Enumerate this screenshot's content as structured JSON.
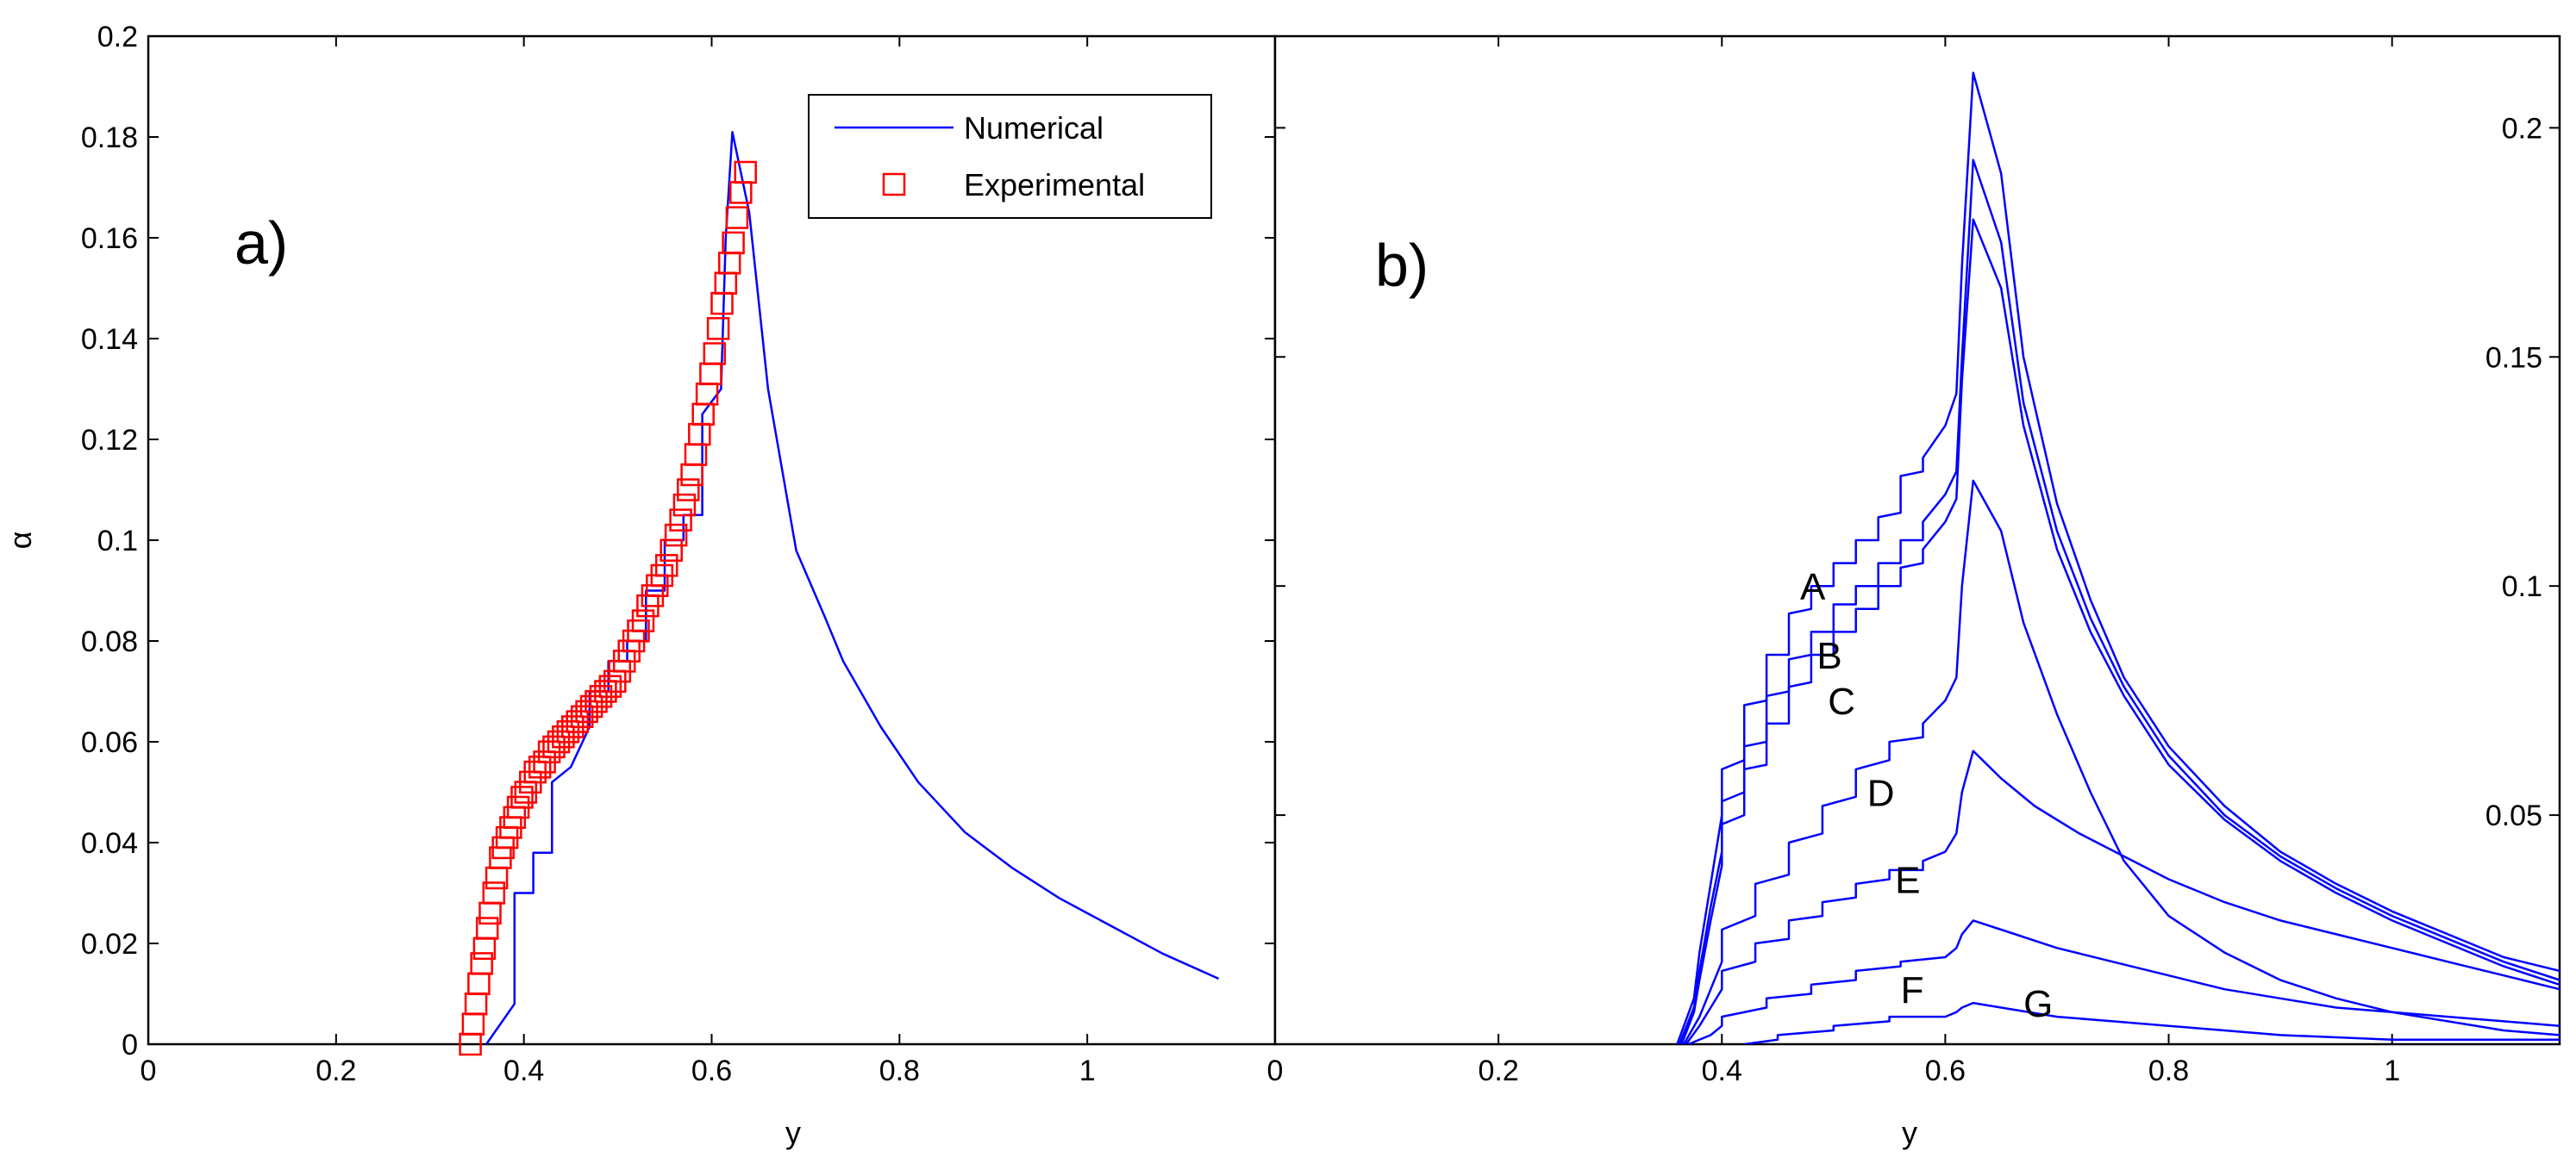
{
  "chart_data": [
    {
      "panel": "a)",
      "type": "line",
      "xlabel": "y",
      "ylabel": "α",
      "xlim": [
        0,
        1.2
      ],
      "ylim": [
        0,
        0.2
      ],
      "xticks": [
        "0",
        "0.2",
        "0.4",
        "0.6",
        "0.8",
        "1"
      ],
      "xtick_values": [
        0,
        0.2,
        0.4,
        0.6,
        0.8,
        1.0
      ],
      "yticks": [
        "0",
        "0.02",
        "0.04",
        "0.06",
        "0.08",
        "0.1",
        "0.12",
        "0.14",
        "0.16",
        "0.18",
        "0.2"
      ],
      "ytick_values": [
        0,
        0.02,
        0.04,
        0.06,
        0.08,
        0.1,
        0.12,
        0.14,
        0.16,
        0.18,
        0.2
      ],
      "legend_position": "top-right",
      "series": [
        {
          "name": "Numerical",
          "style": "line",
          "color": "#0000ff",
          "x": [
            0.36,
            0.375,
            0.39,
            0.39,
            0.41,
            0.41,
            0.43,
            0.43,
            0.45,
            0.47,
            0.47,
            0.49,
            0.49,
            0.51,
            0.51,
            0.53,
            0.53,
            0.55,
            0.55,
            0.57,
            0.57,
            0.59,
            0.59,
            0.61,
            0.615,
            0.622,
            0.64,
            0.66,
            0.69,
            0.72,
            0.74,
            0.78,
            0.82,
            0.87,
            0.92,
            0.97,
            1.02,
            1.08,
            1.14
          ],
          "y": [
            0.0,
            0.004,
            0.008,
            0.03,
            0.03,
            0.038,
            0.038,
            0.052,
            0.055,
            0.063,
            0.07,
            0.07,
            0.076,
            0.076,
            0.08,
            0.08,
            0.09,
            0.09,
            0.1,
            0.1,
            0.105,
            0.105,
            0.125,
            0.13,
            0.16,
            0.181,
            0.165,
            0.13,
            0.098,
            0.085,
            0.076,
            0.063,
            0.052,
            0.042,
            0.035,
            0.029,
            0.024,
            0.018,
            0.013
          ]
        },
        {
          "name": "Experimental",
          "style": "marker-square",
          "color": "#ff0000",
          "x": [
            0.343,
            0.346,
            0.349,
            0.352,
            0.355,
            0.358,
            0.361,
            0.364,
            0.368,
            0.371,
            0.375,
            0.378,
            0.382,
            0.386,
            0.39,
            0.394,
            0.398,
            0.402,
            0.407,
            0.412,
            0.417,
            0.422,
            0.427,
            0.432,
            0.437,
            0.442,
            0.447,
            0.452,
            0.457,
            0.462,
            0.467,
            0.472,
            0.477,
            0.482,
            0.487,
            0.492,
            0.497,
            0.502,
            0.507,
            0.512,
            0.517,
            0.522,
            0.527,
            0.532,
            0.537,
            0.542,
            0.547,
            0.552,
            0.557,
            0.562,
            0.567,
            0.571,
            0.575,
            0.579,
            0.583,
            0.587,
            0.591,
            0.595,
            0.599,
            0.603,
            0.607,
            0.611,
            0.615,
            0.619,
            0.623,
            0.627,
            0.631,
            0.636
          ],
          "y": [
            0.0,
            0.004,
            0.008,
            0.012,
            0.016,
            0.019,
            0.023,
            0.026,
            0.03,
            0.033,
            0.037,
            0.039,
            0.041,
            0.043,
            0.045,
            0.047,
            0.049,
            0.05,
            0.052,
            0.054,
            0.055,
            0.056,
            0.058,
            0.059,
            0.06,
            0.061,
            0.062,
            0.063,
            0.064,
            0.065,
            0.066,
            0.067,
            0.068,
            0.069,
            0.07,
            0.071,
            0.072,
            0.074,
            0.076,
            0.078,
            0.08,
            0.082,
            0.084,
            0.087,
            0.089,
            0.091,
            0.093,
            0.095,
            0.098,
            0.101,
            0.104,
            0.107,
            0.11,
            0.113,
            0.117,
            0.121,
            0.125,
            0.129,
            0.133,
            0.137,
            0.142,
            0.147,
            0.151,
            0.155,
            0.159,
            0.164,
            0.169,
            0.173
          ]
        }
      ]
    },
    {
      "panel": "b)",
      "type": "line",
      "xlabel": "y",
      "ylabel": "",
      "xlim": [
        0,
        1.15
      ],
      "ylim": [
        0,
        0.22
      ],
      "yaxis_side": "right",
      "xticks": [
        "0",
        "0.2",
        "0.4",
        "0.6",
        "0.8",
        "1"
      ],
      "xtick_values": [
        0,
        0.2,
        0.4,
        0.6,
        0.8,
        1.0
      ],
      "yticks": [
        "0.05",
        "0.1",
        "0.15",
        "0.2"
      ],
      "ytick_values": [
        0.05,
        0.1,
        0.15,
        0.2
      ],
      "series": [
        {
          "name": "A",
          "color": "#0000ff",
          "x": [
            0.36,
            0.375,
            0.38,
            0.39,
            0.4,
            0.4,
            0.42,
            0.42,
            0.44,
            0.44,
            0.46,
            0.46,
            0.48,
            0.48,
            0.5,
            0.5,
            0.52,
            0.52,
            0.54,
            0.54,
            0.56,
            0.56,
            0.58,
            0.58,
            0.6,
            0.61,
            0.615,
            0.625,
            0.65,
            0.67,
            0.7,
            0.73,
            0.76,
            0.8,
            0.85,
            0.9,
            0.95,
            1.0,
            1.05,
            1.1,
            1.15
          ],
          "y": [
            0.0,
            0.01,
            0.02,
            0.035,
            0.05,
            0.06,
            0.062,
            0.074,
            0.075,
            0.085,
            0.085,
            0.094,
            0.095,
            0.1,
            0.1,
            0.105,
            0.105,
            0.11,
            0.11,
            0.115,
            0.116,
            0.124,
            0.125,
            0.128,
            0.135,
            0.142,
            0.17,
            0.212,
            0.19,
            0.15,
            0.118,
            0.097,
            0.08,
            0.065,
            0.052,
            0.042,
            0.035,
            0.029,
            0.024,
            0.019,
            0.016
          ]
        },
        {
          "name": "B",
          "color": "#0000ff",
          "x": [
            0.362,
            0.375,
            0.38,
            0.39,
            0.4,
            0.4,
            0.42,
            0.42,
            0.44,
            0.44,
            0.46,
            0.46,
            0.48,
            0.48,
            0.5,
            0.5,
            0.52,
            0.52,
            0.54,
            0.54,
            0.56,
            0.56,
            0.58,
            0.58,
            0.6,
            0.61,
            0.615,
            0.625,
            0.65,
            0.67,
            0.7,
            0.73,
            0.76,
            0.8,
            0.85,
            0.9,
            0.95,
            1.0,
            1.05,
            1.1,
            1.15
          ],
          "y": [
            0.0,
            0.008,
            0.016,
            0.03,
            0.042,
            0.053,
            0.055,
            0.065,
            0.066,
            0.076,
            0.077,
            0.084,
            0.085,
            0.09,
            0.09,
            0.096,
            0.096,
            0.1,
            0.1,
            0.105,
            0.105,
            0.11,
            0.11,
            0.114,
            0.12,
            0.125,
            0.15,
            0.193,
            0.175,
            0.14,
            0.112,
            0.093,
            0.078,
            0.063,
            0.05,
            0.041,
            0.034,
            0.028,
            0.023,
            0.018,
            0.014
          ]
        },
        {
          "name": "C",
          "color": "#0000ff",
          "x": [
            0.364,
            0.375,
            0.38,
            0.39,
            0.4,
            0.4,
            0.42,
            0.42,
            0.44,
            0.44,
            0.46,
            0.46,
            0.48,
            0.48,
            0.5,
            0.5,
            0.52,
            0.52,
            0.54,
            0.54,
            0.56,
            0.56,
            0.58,
            0.58,
            0.6,
            0.61,
            0.615,
            0.625,
            0.65,
            0.67,
            0.7,
            0.73,
            0.76,
            0.8,
            0.85,
            0.9,
            0.95,
            1.0,
            1.05,
            1.1,
            1.15
          ],
          "y": [
            0.0,
            0.007,
            0.014,
            0.027,
            0.039,
            0.048,
            0.05,
            0.06,
            0.061,
            0.07,
            0.07,
            0.078,
            0.079,
            0.085,
            0.085,
            0.09,
            0.09,
            0.095,
            0.095,
            0.1,
            0.1,
            0.104,
            0.105,
            0.108,
            0.114,
            0.119,
            0.145,
            0.18,
            0.165,
            0.135,
            0.108,
            0.09,
            0.076,
            0.061,
            0.049,
            0.04,
            0.033,
            0.027,
            0.022,
            0.017,
            0.013
          ]
        },
        {
          "name": "D",
          "color": "#0000ff",
          "x": [
            0.366,
            0.38,
            0.39,
            0.4,
            0.4,
            0.43,
            0.43,
            0.46,
            0.46,
            0.49,
            0.49,
            0.52,
            0.52,
            0.55,
            0.55,
            0.58,
            0.58,
            0.6,
            0.61,
            0.615,
            0.625,
            0.65,
            0.67,
            0.7,
            0.73,
            0.76,
            0.8,
            0.85,
            0.9,
            0.95,
            1.0,
            1.05,
            1.1,
            1.15
          ],
          "y": [
            0.0,
            0.006,
            0.012,
            0.018,
            0.025,
            0.028,
            0.035,
            0.037,
            0.044,
            0.046,
            0.052,
            0.054,
            0.06,
            0.062,
            0.066,
            0.067,
            0.07,
            0.075,
            0.08,
            0.1,
            0.123,
            0.112,
            0.092,
            0.072,
            0.055,
            0.04,
            0.028,
            0.02,
            0.014,
            0.01,
            0.007,
            0.005,
            0.003,
            0.002
          ]
        },
        {
          "name": "E",
          "color": "#0000ff",
          "x": [
            0.368,
            0.38,
            0.39,
            0.4,
            0.4,
            0.43,
            0.43,
            0.46,
            0.46,
            0.49,
            0.49,
            0.52,
            0.52,
            0.55,
            0.55,
            0.58,
            0.58,
            0.6,
            0.61,
            0.615,
            0.625,
            0.65,
            0.68,
            0.72,
            0.76,
            0.8,
            0.85,
            0.9,
            0.95,
            1.0,
            1.05,
            1.1,
            1.15
          ],
          "y": [
            0.0,
            0.004,
            0.008,
            0.012,
            0.016,
            0.018,
            0.022,
            0.023,
            0.027,
            0.028,
            0.031,
            0.032,
            0.035,
            0.036,
            0.038,
            0.038,
            0.04,
            0.042,
            0.046,
            0.055,
            0.064,
            0.058,
            0.052,
            0.046,
            0.041,
            0.036,
            0.031,
            0.027,
            0.024,
            0.021,
            0.018,
            0.015,
            0.012
          ]
        },
        {
          "name": "F",
          "color": "#0000ff",
          "x": [
            0.37,
            0.39,
            0.4,
            0.4,
            0.44,
            0.44,
            0.48,
            0.48,
            0.52,
            0.52,
            0.56,
            0.56,
            0.6,
            0.61,
            0.615,
            0.625,
            0.65,
            0.7,
            0.75,
            0.8,
            0.85,
            0.9,
            0.95,
            1.0,
            1.05,
            1.1,
            1.15
          ],
          "y": [
            0.0,
            0.002,
            0.004,
            0.006,
            0.008,
            0.01,
            0.011,
            0.013,
            0.014,
            0.016,
            0.017,
            0.018,
            0.019,
            0.021,
            0.024,
            0.027,
            0.025,
            0.021,
            0.018,
            0.015,
            0.012,
            0.01,
            0.008,
            0.007,
            0.006,
            0.005,
            0.004
          ]
        },
        {
          "name": "G",
          "color": "#0000ff",
          "x": [
            0.42,
            0.45,
            0.45,
            0.5,
            0.5,
            0.55,
            0.55,
            0.6,
            0.61,
            0.615,
            0.625,
            0.65,
            0.7,
            0.75,
            0.8,
            0.85,
            0.9,
            0.95,
            1.0,
            1.05,
            1.1,
            1.15
          ],
          "y": [
            0.0,
            0.001,
            0.002,
            0.003,
            0.004,
            0.005,
            0.006,
            0.006,
            0.007,
            0.008,
            0.009,
            0.008,
            0.006,
            0.005,
            0.004,
            0.003,
            0.002,
            0.0015,
            0.001,
            0.001,
            0.001,
            0.001
          ]
        }
      ],
      "annotations": [
        {
          "text": "A",
          "x": 0.47,
          "y": 0.1
        },
        {
          "text": "B",
          "x": 0.485,
          "y": 0.085
        },
        {
          "text": "C",
          "x": 0.495,
          "y": 0.075
        },
        {
          "text": "D",
          "x": 0.53,
          "y": 0.055
        },
        {
          "text": "E",
          "x": 0.555,
          "y": 0.036
        },
        {
          "text": "F",
          "x": 0.56,
          "y": 0.012
        },
        {
          "text": "G",
          "x": 0.67,
          "y": 0.009
        }
      ]
    }
  ]
}
